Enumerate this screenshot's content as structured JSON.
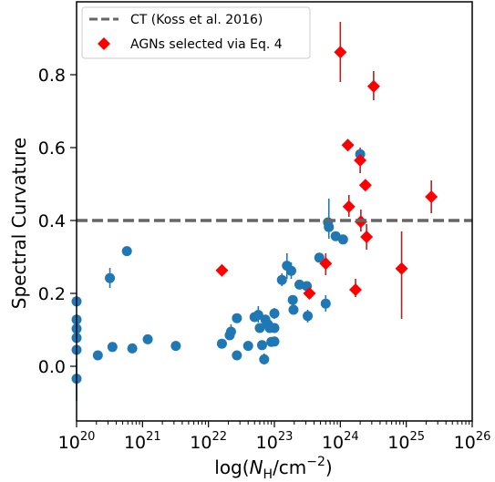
{
  "chart_data": {
    "type": "scatter",
    "xlabel": "log(N_H/cm^-2)",
    "xlabel_parts": {
      "prefix": "log(",
      "var": "N",
      "sub": "H",
      "mid": "/cm",
      "sup": "−2",
      "suffix": ")"
    },
    "ylabel": "Spectral Curvature",
    "x_scale": "log",
    "xlim": [
      1e+20,
      1e+26
    ],
    "ylim": [
      -0.15,
      1.0
    ],
    "x_ticks": [
      {
        "value": 1e+20,
        "base": "10",
        "exp": "20"
      },
      {
        "value": 1e+21,
        "base": "10",
        "exp": "21"
      },
      {
        "value": 1e+22,
        "base": "10",
        "exp": "22"
      },
      {
        "value": 1e+23,
        "base": "10",
        "exp": "23"
      },
      {
        "value": 1e+24,
        "base": "10",
        "exp": "24"
      },
      {
        "value": 1e+25,
        "base": "10",
        "exp": "25"
      },
      {
        "value": 1e+26,
        "base": "10",
        "exp": "26"
      }
    ],
    "y_ticks": [
      {
        "value": 0.0,
        "label": "0.0"
      },
      {
        "value": 0.2,
        "label": "0.2"
      },
      {
        "value": 0.4,
        "label": "0.4"
      },
      {
        "value": 0.6,
        "label": "0.6"
      },
      {
        "value": 0.8,
        "label": "0.8"
      }
    ],
    "grid": false,
    "legend_position": "top-left",
    "reference_line": {
      "name": "CT (Koss et al. 2016)",
      "y": 0.4,
      "color": "#666666",
      "style": "dashed"
    },
    "series": [
      {
        "name": "AGNs selected via Eq. 4",
        "marker": "diamond",
        "color": "#ff0000",
        "errcolor": "#b22222",
        "points": [
          {
            "x": 1.6e+22,
            "y": 0.263
          },
          {
            "x": 3.4e+23,
            "y": 0.2
          },
          {
            "x": 6e+23,
            "y": 0.282,
            "lo": 0.25,
            "hi": 0.31
          },
          {
            "x": 1e+24,
            "y": 0.862,
            "lo": 0.78,
            "hi": 0.945
          },
          {
            "x": 1.3e+24,
            "y": 0.607
          },
          {
            "x": 1.35e+24,
            "y": 0.438,
            "lo": 0.41,
            "hi": 0.47
          },
          {
            "x": 1.7e+24,
            "y": 0.21,
            "lo": 0.19,
            "hi": 0.24
          },
          {
            "x": 2e+24,
            "y": 0.565,
            "lo": 0.53,
            "hi": 0.6
          },
          {
            "x": 2.05e+24,
            "y": 0.397,
            "lo": 0.37,
            "hi": 0.43
          },
          {
            "x": 2.4e+24,
            "y": 0.497
          },
          {
            "x": 2.5e+24,
            "y": 0.355,
            "lo": 0.32,
            "hi": 0.39
          },
          {
            "x": 3.2e+24,
            "y": 0.768,
            "lo": 0.73,
            "hi": 0.81
          },
          {
            "x": 8.5e+24,
            "y": 0.268,
            "lo": 0.13,
            "hi": 0.37
          },
          {
            "x": 2.4e+25,
            "y": 0.465,
            "lo": 0.42,
            "hi": 0.51
          }
        ]
      },
      {
        "name": "",
        "marker": "circle",
        "color": "#1f77b4",
        "errcolor": "#1f77b4",
        "points": [
          {
            "x": 1e+20,
            "y": 0.178
          },
          {
            "x": 1e+20,
            "y": 0.128
          },
          {
            "x": 1e+20,
            "y": 0.103
          },
          {
            "x": 1e+20,
            "y": 0.078
          },
          {
            "x": 1e+20,
            "y": 0.045
          },
          {
            "x": 1e+20,
            "y": -0.034,
            "lo": -0.095,
            "hi": 0.02
          },
          {
            "x": 2.1e+20,
            "y": 0.03
          },
          {
            "x": 3.2e+20,
            "y": 0.242,
            "lo": 0.215,
            "hi": 0.27
          },
          {
            "x": 3.5e+20,
            "y": 0.053
          },
          {
            "x": 5.8e+20,
            "y": 0.316
          },
          {
            "x": 7e+20,
            "y": 0.049
          },
          {
            "x": 1.2e+21,
            "y": 0.074
          },
          {
            "x": 3.2e+21,
            "y": 0.056
          },
          {
            "x": 1.6e+22,
            "y": 0.062
          },
          {
            "x": 2.1e+22,
            "y": 0.085
          },
          {
            "x": 2.2e+22,
            "y": 0.095,
            "lo": 0.075,
            "hi": 0.115
          },
          {
            "x": 2.7e+22,
            "y": 0.132
          },
          {
            "x": 2.7e+22,
            "y": 0.03
          },
          {
            "x": 4e+22,
            "y": 0.056
          },
          {
            "x": 5e+22,
            "y": 0.135
          },
          {
            "x": 5.7e+22,
            "y": 0.141,
            "lo": 0.12,
            "hi": 0.165
          },
          {
            "x": 6e+22,
            "y": 0.105
          },
          {
            "x": 6.5e+22,
            "y": 0.058
          },
          {
            "x": 7e+22,
            "y": 0.019,
            "lo": 0.005,
            "hi": 0.035
          },
          {
            "x": 7.3e+22,
            "y": 0.128
          },
          {
            "x": 8e+22,
            "y": 0.115
          },
          {
            "x": 8.5e+22,
            "y": 0.105
          },
          {
            "x": 9e+22,
            "y": 0.067
          },
          {
            "x": 1e+23,
            "y": 0.145,
            "lo": 0.13,
            "hi": 0.16
          },
          {
            "x": 1e+23,
            "y": 0.068
          },
          {
            "x": 1e+23,
            "y": 0.105
          },
          {
            "x": 1.3e+23,
            "y": 0.237,
            "lo": 0.22,
            "hi": 0.255
          },
          {
            "x": 1.55e+23,
            "y": 0.276,
            "lo": 0.24,
            "hi": 0.31
          },
          {
            "x": 1.8e+23,
            "y": 0.262,
            "lo": 0.24,
            "hi": 0.285
          },
          {
            "x": 1.9e+23,
            "y": 0.182
          },
          {
            "x": 1.95e+23,
            "y": 0.155
          },
          {
            "x": 2.4e+23,
            "y": 0.224
          },
          {
            "x": 3.1e+23,
            "y": 0.22
          },
          {
            "x": 3.2e+23,
            "y": 0.138,
            "lo": 0.12,
            "hi": 0.155
          },
          {
            "x": 4.8e+23,
            "y": 0.298
          },
          {
            "x": 6e+23,
            "y": 0.172,
            "lo": 0.15,
            "hi": 0.195
          },
          {
            "x": 6.5e+23,
            "y": 0.395
          },
          {
            "x": 6.7e+23,
            "y": 0.382,
            "lo": 0.35,
            "hi": 0.46
          },
          {
            "x": 8.5e+23,
            "y": 0.357
          },
          {
            "x": 1.1e+24,
            "y": 0.348
          },
          {
            "x": 2e+24,
            "y": 0.582
          }
        ]
      }
    ]
  }
}
